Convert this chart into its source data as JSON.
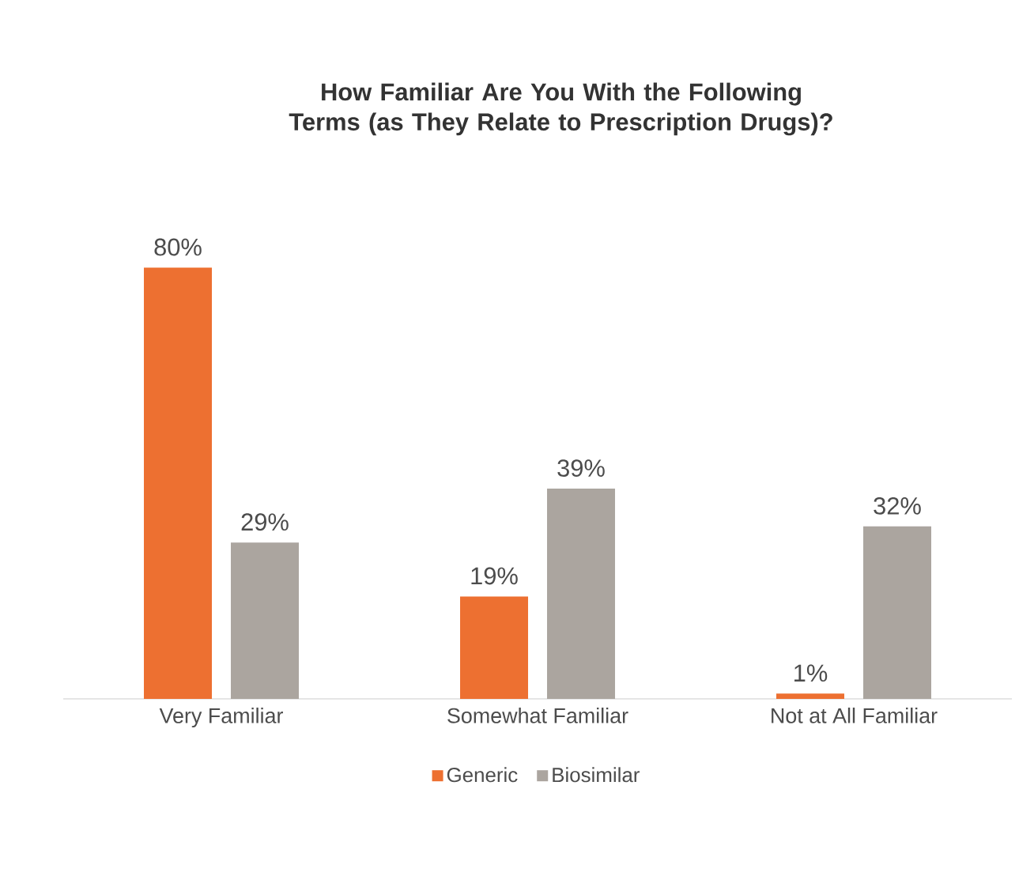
{
  "chart_data": {
    "type": "bar",
    "title": "How Familiar Are You With the Following Terms (as They Relate to Prescription Drugs)?",
    "categories": [
      "Very Familiar",
      "Somewhat Familiar",
      "Not at All Familiar"
    ],
    "series": [
      {
        "name": "Generic",
        "color": "#ed7031",
        "values": [
          80,
          19,
          1
        ],
        "value_labels": [
          "80%",
          "19%",
          "1%"
        ]
      },
      {
        "name": "Biosimilar",
        "color": "#aba59f",
        "values": [
          29,
          39,
          32
        ],
        "value_labels": [
          "29%",
          "39%",
          "32%"
        ]
      }
    ],
    "legend": "bottom"
  }
}
